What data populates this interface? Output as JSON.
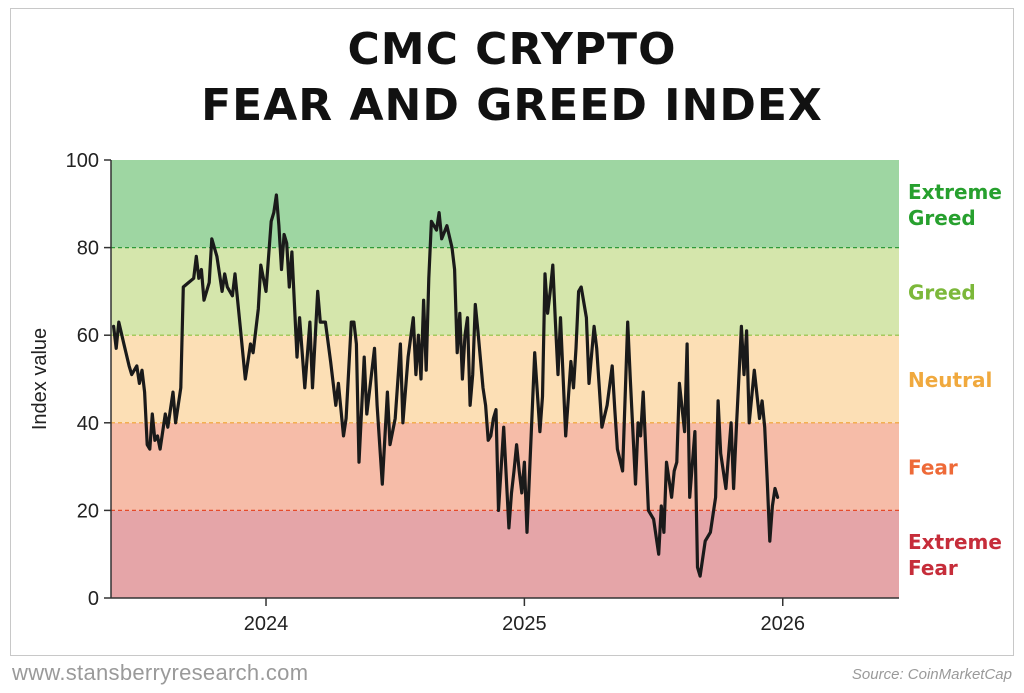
{
  "title_line1": "CMC CRYPTO",
  "title_line2": "FEAR AND GREED INDEX",
  "footer": {
    "website": "www.stansberryresearch.com",
    "source": "Source: CoinMarketCap"
  },
  "chart_data": {
    "type": "line",
    "ylabel": "Index value",
    "xlabel": "",
    "ylim": [
      0,
      100
    ],
    "yticks": [
      0,
      20,
      40,
      60,
      80,
      100
    ],
    "xlim": [
      2023.4,
      2026.45
    ],
    "xticks": [
      {
        "value": 2024,
        "label": "2024"
      },
      {
        "value": 2025,
        "label": "2025"
      },
      {
        "value": 2026,
        "label": "2026"
      }
    ],
    "zones": [
      {
        "label": "Extreme Fear",
        "from": 0,
        "to": 20,
        "fill": "#e5a5a8",
        "label_color": "#c62d3a",
        "line_color": "#b0223a"
      },
      {
        "label": "Fear",
        "from": 20,
        "to": 40,
        "fill": "#f6bca8",
        "label_color": "#ee6a38",
        "line_color": "#e54a2a"
      },
      {
        "label": "Neutral",
        "from": 40,
        "to": 60,
        "fill": "#fcdfb5",
        "label_color": "#f0a93e",
        "line_color": "#f0a030"
      },
      {
        "label": "Greed",
        "from": 60,
        "to": 80,
        "fill": "#d5e6ac",
        "label_color": "#7cb83a",
        "line_color": "#8cc040"
      },
      {
        "label": "Extreme Greed",
        "from": 80,
        "to": 100,
        "fill": "#9ed6a2",
        "label_color": "#27a02e",
        "line_color": "#2e9a38"
      }
    ],
    "grid": false,
    "series": [
      {
        "color": "#1a1a1a",
        "points": [
          [
            2023.41,
            62
          ],
          [
            2023.42,
            57
          ],
          [
            2023.43,
            63
          ],
          [
            2023.45,
            58
          ],
          [
            2023.47,
            53
          ],
          [
            2023.48,
            51
          ],
          [
            2023.5,
            53
          ],
          [
            2023.51,
            49
          ],
          [
            2023.52,
            52
          ],
          [
            2023.53,
            47
          ],
          [
            2023.54,
            35
          ],
          [
            2023.55,
            34
          ],
          [
            2023.56,
            42
          ],
          [
            2023.57,
            36
          ],
          [
            2023.58,
            37
          ],
          [
            2023.59,
            34
          ],
          [
            2023.61,
            42
          ],
          [
            2023.62,
            39
          ],
          [
            2023.64,
            47
          ],
          [
            2023.65,
            40
          ],
          [
            2023.67,
            48
          ],
          [
            2023.68,
            71
          ],
          [
            2023.7,
            72
          ],
          [
            2023.72,
            73
          ],
          [
            2023.73,
            78
          ],
          [
            2023.74,
            73
          ],
          [
            2023.75,
            75
          ],
          [
            2023.76,
            68
          ],
          [
            2023.78,
            72
          ],
          [
            2023.79,
            82
          ],
          [
            2023.81,
            78
          ],
          [
            2023.83,
            70
          ],
          [
            2023.84,
            74
          ],
          [
            2023.85,
            71
          ],
          [
            2023.87,
            69
          ],
          [
            2023.88,
            74
          ],
          [
            2023.9,
            62
          ],
          [
            2023.92,
            50
          ],
          [
            2023.94,
            58
          ],
          [
            2023.95,
            56
          ],
          [
            2023.97,
            66
          ],
          [
            2023.98,
            76
          ],
          [
            2024.0,
            70
          ],
          [
            2024.02,
            86
          ],
          [
            2024.03,
            88
          ],
          [
            2024.04,
            92
          ],
          [
            2024.05,
            85
          ],
          [
            2024.06,
            75
          ],
          [
            2024.07,
            83
          ],
          [
            2024.08,
            81
          ],
          [
            2024.09,
            71
          ],
          [
            2024.1,
            79
          ],
          [
            2024.12,
            55
          ],
          [
            2024.13,
            64
          ],
          [
            2024.15,
            48
          ],
          [
            2024.17,
            63
          ],
          [
            2024.18,
            48
          ],
          [
            2024.2,
            70
          ],
          [
            2024.21,
            63
          ],
          [
            2024.23,
            63
          ],
          [
            2024.25,
            54
          ],
          [
            2024.27,
            44
          ],
          [
            2024.28,
            49
          ],
          [
            2024.3,
            37
          ],
          [
            2024.31,
            41
          ],
          [
            2024.33,
            63
          ],
          [
            2024.34,
            63
          ],
          [
            2024.35,
            58
          ],
          [
            2024.36,
            31
          ],
          [
            2024.38,
            55
          ],
          [
            2024.39,
            42
          ],
          [
            2024.4,
            47
          ],
          [
            2024.42,
            57
          ],
          [
            2024.43,
            44
          ],
          [
            2024.45,
            26
          ],
          [
            2024.47,
            47
          ],
          [
            2024.48,
            35
          ],
          [
            2024.5,
            41
          ],
          [
            2024.52,
            58
          ],
          [
            2024.53,
            40
          ],
          [
            2024.55,
            55
          ],
          [
            2024.57,
            64
          ],
          [
            2024.58,
            51
          ],
          [
            2024.59,
            60
          ],
          [
            2024.6,
            50
          ],
          [
            2024.61,
            68
          ],
          [
            2024.62,
            52
          ],
          [
            2024.63,
            73
          ],
          [
            2024.64,
            86
          ],
          [
            2024.66,
            84
          ],
          [
            2024.67,
            88
          ],
          [
            2024.68,
            82
          ],
          [
            2024.7,
            85
          ],
          [
            2024.72,
            80
          ],
          [
            2024.73,
            75
          ],
          [
            2024.74,
            56
          ],
          [
            2024.75,
            65
          ],
          [
            2024.76,
            50
          ],
          [
            2024.77,
            60
          ],
          [
            2024.78,
            64
          ],
          [
            2024.79,
            44
          ],
          [
            2024.8,
            51
          ],
          [
            2024.81,
            67
          ],
          [
            2024.82,
            61
          ],
          [
            2024.84,
            48
          ],
          [
            2024.85,
            44
          ],
          [
            2024.86,
            36
          ],
          [
            2024.87,
            37
          ],
          [
            2024.88,
            41
          ],
          [
            2024.89,
            43
          ],
          [
            2024.9,
            20
          ],
          [
            2024.92,
            39
          ],
          [
            2024.94,
            16
          ],
          [
            2024.95,
            24
          ],
          [
            2024.96,
            29
          ],
          [
            2024.97,
            35
          ],
          [
            2024.98,
            29
          ],
          [
            2024.99,
            24
          ],
          [
            2025.0,
            31
          ],
          [
            2025.01,
            15
          ],
          [
            2025.04,
            56
          ],
          [
            2025.06,
            38
          ],
          [
            2025.07,
            46
          ],
          [
            2025.08,
            74
          ],
          [
            2025.09,
            65
          ],
          [
            2025.1,
            70
          ],
          [
            2025.11,
            76
          ],
          [
            2025.12,
            63
          ],
          [
            2025.13,
            51
          ],
          [
            2025.14,
            64
          ],
          [
            2025.16,
            37
          ],
          [
            2025.18,
            54
          ],
          [
            2025.19,
            48
          ],
          [
            2025.2,
            57
          ],
          [
            2025.21,
            70
          ],
          [
            2025.22,
            71
          ],
          [
            2025.24,
            64
          ],
          [
            2025.25,
            49
          ],
          [
            2025.27,
            62
          ],
          [
            2025.28,
            57
          ],
          [
            2025.3,
            39
          ],
          [
            2025.32,
            44
          ],
          [
            2025.34,
            53
          ],
          [
            2025.35,
            43
          ],
          [
            2025.36,
            34
          ],
          [
            2025.38,
            29
          ],
          [
            2025.4,
            63
          ],
          [
            2025.41,
            50
          ],
          [
            2025.43,
            26
          ],
          [
            2025.44,
            40
          ],
          [
            2025.45,
            37
          ],
          [
            2025.46,
            47
          ],
          [
            2025.48,
            20
          ],
          [
            2025.5,
            18
          ],
          [
            2025.52,
            10
          ],
          [
            2025.53,
            21
          ],
          [
            2025.54,
            15
          ],
          [
            2025.55,
            31
          ],
          [
            2025.57,
            23
          ],
          [
            2025.58,
            29
          ],
          [
            2025.59,
            31
          ],
          [
            2025.6,
            49
          ],
          [
            2025.62,
            38
          ],
          [
            2025.63,
            58
          ],
          [
            2025.64,
            23
          ],
          [
            2025.66,
            38
          ],
          [
            2025.67,
            7
          ],
          [
            2025.68,
            5
          ],
          [
            2025.7,
            13
          ],
          [
            2025.72,
            15
          ],
          [
            2025.74,
            23
          ],
          [
            2025.75,
            45
          ],
          [
            2025.76,
            33
          ],
          [
            2025.78,
            25
          ],
          [
            2025.8,
            40
          ],
          [
            2025.81,
            25
          ],
          [
            2025.82,
            38
          ],
          [
            2025.84,
            62
          ],
          [
            2025.85,
            51
          ],
          [
            2025.86,
            61
          ],
          [
            2025.87,
            40
          ],
          [
            2025.89,
            52
          ],
          [
            2025.91,
            41
          ],
          [
            2025.92,
            45
          ],
          [
            2025.93,
            39
          ],
          [
            2025.94,
            27
          ],
          [
            2025.95,
            13
          ],
          [
            2025.96,
            21
          ],
          [
            2025.97,
            25
          ],
          [
            2025.98,
            23
          ]
        ]
      }
    ]
  }
}
